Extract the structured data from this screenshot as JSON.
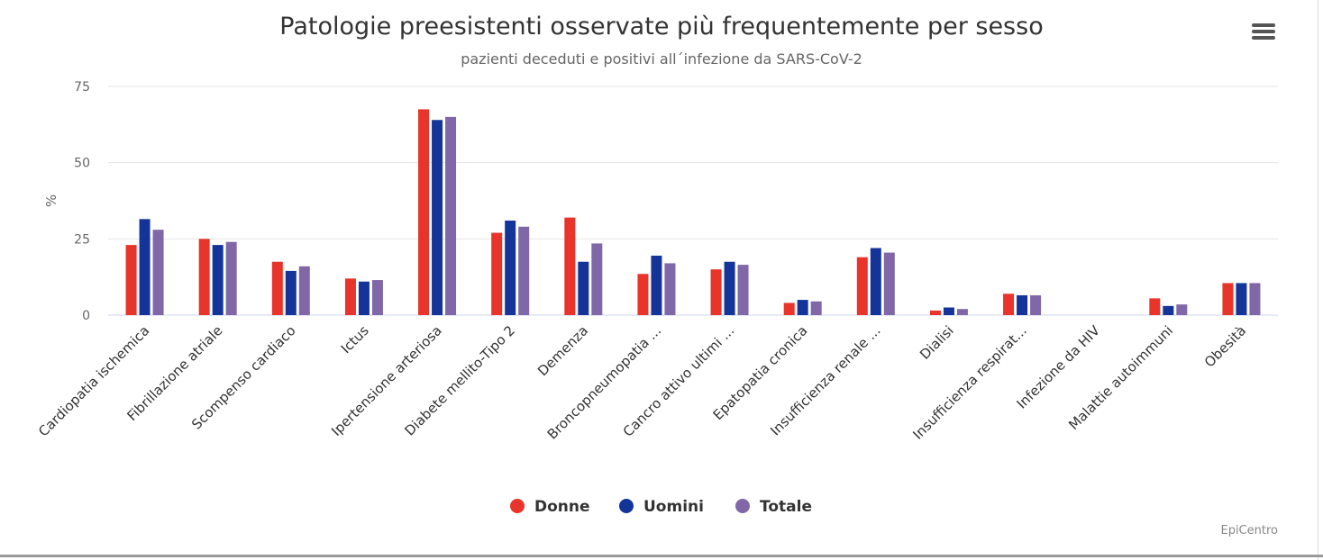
{
  "title": "Patologie preesistenti osservate più frequentemente per sesso",
  "subtitle": "pazienti deceduti e positivi all´infezione da SARS-CoV-2",
  "credits": "EpiCentro",
  "menu_icon": "hamburger-menu-icon",
  "colors": {
    "Donne": "#e8342a",
    "Uomini": "#14349a",
    "Totale": "#8068a8",
    "grid": "#e6e6e6",
    "axis_text": "#666666",
    "label_text": "#333333"
  },
  "chart_data": {
    "type": "bar",
    "title": "Patologie preesistenti osservate più frequentemente per sesso",
    "subtitle": "pazienti deceduti e positivi all´infezione da SARS-CoV-2",
    "xlabel": "",
    "ylabel": "%",
    "ylim": [
      0,
      75
    ],
    "yticks": [
      "0",
      "25",
      "50",
      "75"
    ],
    "grid": true,
    "legend_position": "bottom-center",
    "categories": [
      "Cardiopatia ischemica",
      "Fibrillazione atriale",
      "Scompenso cardiaco",
      "Ictus",
      "Ipertensione arteriosa",
      "Diabete mellito-Tipo 2",
      "Demenza",
      "Broncopneumopatia ...",
      "Cancro attivo ultimi ...",
      "Epatopatia cronica",
      "Insufficienza renale ...",
      "Dialisi",
      "Insufficienza respirat...",
      "Infezione da HIV",
      "Malattie autoimmuni",
      "Obesità"
    ],
    "series": [
      {
        "name": "Donne",
        "values": [
          23,
          25,
          17.5,
          12,
          67.5,
          27,
          32,
          13.5,
          15,
          4,
          19,
          1.5,
          7,
          0,
          5.5,
          10.5
        ]
      },
      {
        "name": "Uomini",
        "values": [
          31.5,
          23,
          14.5,
          11,
          64,
          31,
          17.5,
          19.5,
          17.5,
          5,
          22,
          2.5,
          6.5,
          0,
          3,
          10.5
        ]
      },
      {
        "name": "Totale",
        "values": [
          28,
          24,
          16,
          11.5,
          65,
          29,
          23.5,
          17,
          16.5,
          4.5,
          20.5,
          2,
          6.5,
          0,
          3.5,
          10.5
        ]
      }
    ]
  }
}
